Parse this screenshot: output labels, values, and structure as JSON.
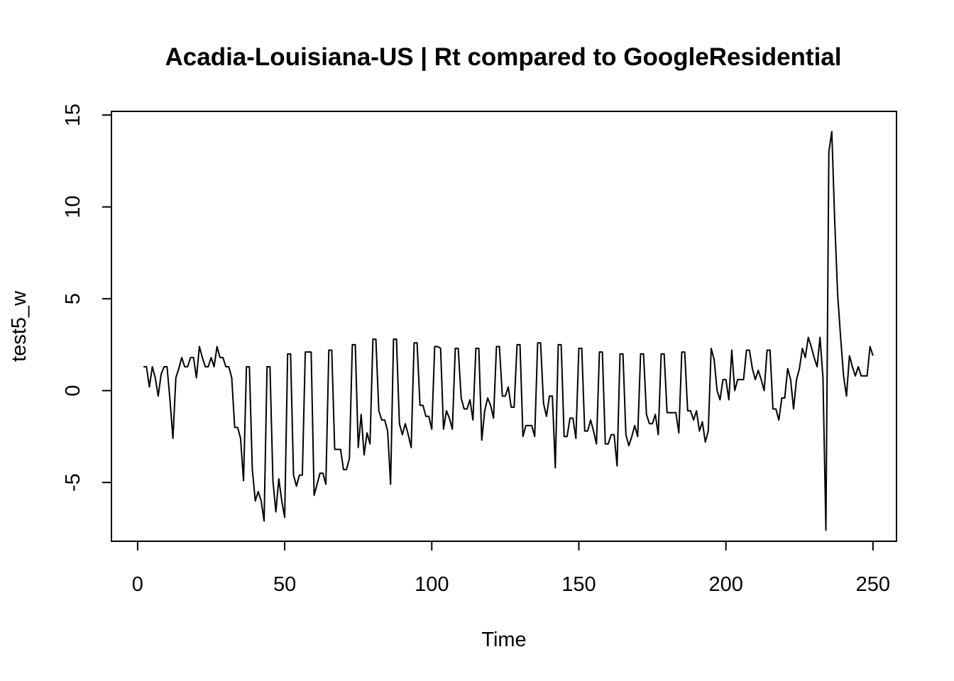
{
  "chart_data": {
    "type": "line",
    "title": "Acadia-Louisiana-US | Rt compared to GoogleResidential",
    "xlabel": "Time",
    "ylabel": "test5_w",
    "xlim": [
      -8.9,
      258
    ],
    "ylim": [
      -8.2,
      15.2
    ],
    "x_ticks": [
      0,
      50,
      100,
      150,
      200,
      250
    ],
    "y_ticks": [
      -5,
      0,
      5,
      10,
      15
    ],
    "x_tick_labels": [
      "0",
      "50",
      "100",
      "150",
      "200",
      "250"
    ],
    "y_tick_labels": [
      "-5",
      "0",
      "5",
      "10",
      "15"
    ],
    "grid": false,
    "line_color": "#000000",
    "series": [
      {
        "x_start": 2,
        "values": [
          1.3,
          1.3,
          0.2,
          1.3,
          0.7,
          -0.3,
          0.9,
          1.3,
          1.3,
          -0.5,
          -2.6,
          0.7,
          1.2,
          1.8,
          1.3,
          1.3,
          1.8,
          1.8,
          0.7,
          2.4,
          1.8,
          1.3,
          1.3,
          1.8,
          1.3,
          2.4,
          1.8,
          1.8,
          1.3,
          1.3,
          0.7,
          -2.0,
          -2.0,
          -2.6,
          -4.9,
          1.3,
          1.3,
          -4.3,
          -6.0,
          -5.5,
          -6.0,
          -7.1,
          1.3,
          1.3,
          -4.9,
          -6.6,
          -4.8,
          -6.0,
          -6.9,
          2.0,
          2.0,
          -4.6,
          -5.2,
          -4.6,
          -4.6,
          2.1,
          2.1,
          2.1,
          -5.7,
          -5.1,
          -4.5,
          -4.5,
          -5.1,
          2.2,
          2.2,
          -3.2,
          -3.2,
          -3.2,
          -4.3,
          -4.3,
          -3.7,
          2.5,
          2.5,
          -3.1,
          -1.3,
          -3.5,
          -2.3,
          -2.9,
          2.8,
          2.8,
          -1.1,
          -1.6,
          -1.6,
          -2.2,
          -5.1,
          2.8,
          2.8,
          -1.8,
          -2.4,
          -1.8,
          -2.4,
          -3.1,
          2.6,
          2.6,
          -0.8,
          -0.8,
          -1.4,
          -1.4,
          -2.1,
          2.4,
          2.4,
          2.3,
          -2.1,
          -1.1,
          -1.5,
          -2.1,
          2.3,
          2.3,
          -0.4,
          -1.0,
          -1.0,
          -0.5,
          -1.6,
          2.3,
          2.3,
          -2.7,
          -1.1,
          -0.4,
          -0.8,
          -1.5,
          2.4,
          2.4,
          -0.3,
          -0.3,
          0.2,
          -0.9,
          -0.9,
          2.5,
          2.5,
          -2.5,
          -1.9,
          -1.9,
          -1.9,
          -2.5,
          2.6,
          2.6,
          -0.7,
          -1.4,
          -0.3,
          -0.3,
          -4.2,
          2.5,
          2.5,
          -2.5,
          -2.5,
          -1.5,
          -1.5,
          -2.6,
          2.3,
          2.3,
          -2.2,
          -2.2,
          -1.6,
          -2.2,
          -2.9,
          2.1,
          2.1,
          -2.9,
          -2.9,
          -2.4,
          -2.4,
          -4.1,
          2.0,
          2.0,
          -2.4,
          -3.0,
          -2.5,
          -1.9,
          -2.5,
          2.0,
          2.0,
          -1.3,
          -1.8,
          -1.8,
          -1.3,
          -2.4,
          2.0,
          2.0,
          -1.2,
          -1.2,
          -1.2,
          -1.2,
          -2.3,
          2.1,
          2.1,
          -1.1,
          -1.1,
          -1.6,
          -1.1,
          -2.2,
          -1.7,
          -2.8,
          -2.2,
          2.3,
          1.7,
          0.0,
          -0.5,
          0.6,
          0.6,
          -0.5,
          2.2,
          0.0,
          0.6,
          0.6,
          0.6,
          2.2,
          2.2,
          1.2,
          0.6,
          1.1,
          0.6,
          0.0,
          2.2,
          2.2,
          -1.0,
          -1.0,
          -1.6,
          -0.4,
          -0.4,
          1.2,
          0.6,
          -1.0,
          0.6,
          1.2,
          2.3,
          1.8,
          2.9,
          2.4,
          1.8,
          1.3,
          2.9,
          0.7,
          -7.6,
          13.0,
          14.1,
          9.2,
          5.2,
          2.9,
          0.8,
          -0.3,
          1.9,
          1.3,
          0.8,
          1.3,
          0.8,
          0.8,
          0.8,
          2.4,
          1.9
        ]
      }
    ]
  }
}
